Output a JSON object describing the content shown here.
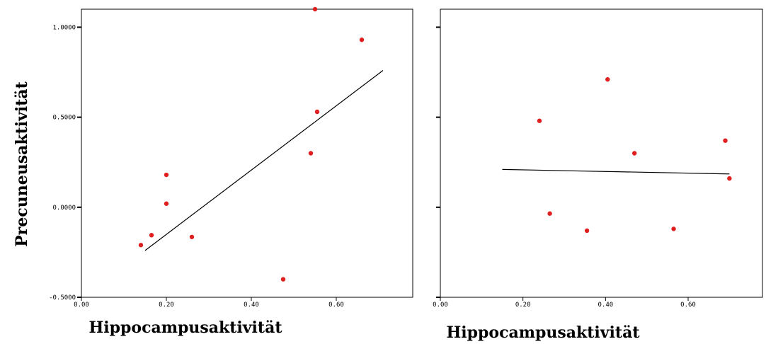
{
  "chart_data": [
    {
      "type": "scatter",
      "xlabel": "Hippocampusaktivität",
      "ylabel": "Precuneusaktivität",
      "xlim": [
        0.0,
        0.78
      ],
      "ylim": [
        -0.5,
        1.1
      ],
      "xticks": [
        "0.00",
        "0.20",
        "0.40",
        "0.60"
      ],
      "yticks": [
        "-0.5000",
        "0.0000",
        "0.5000",
        "1.0000"
      ],
      "series": [
        {
          "points": [
            {
              "x": 0.14,
              "y": -0.21
            },
            {
              "x": 0.165,
              "y": -0.155
            },
            {
              "x": 0.2,
              "y": 0.18
            },
            {
              "x": 0.2,
              "y": 0.02
            },
            {
              "x": 0.26,
              "y": -0.165
            },
            {
              "x": 0.475,
              "y": -0.4
            },
            {
              "x": 0.54,
              "y": 0.3
            },
            {
              "x": 0.55,
              "y": 1.1
            },
            {
              "x": 0.555,
              "y": 0.53
            },
            {
              "x": 0.66,
              "y": 0.93
            }
          ]
        }
      ],
      "fit_line": {
        "x": [
          0.15,
          0.71
        ],
        "y": [
          -0.24,
          0.76
        ]
      }
    },
    {
      "type": "scatter",
      "xlabel": "Hippocampusaktivität",
      "ylabel": "",
      "xlim": [
        0.0,
        0.78
      ],
      "ylim": [
        -0.5,
        1.1
      ],
      "xticks": [
        "0.00",
        "0.20",
        "0.40",
        "0.60"
      ],
      "yticks": [],
      "series": [
        {
          "points": [
            {
              "x": 0.24,
              "y": 0.48
            },
            {
              "x": 0.265,
              "y": -0.035
            },
            {
              "x": 0.355,
              "y": -0.13
            },
            {
              "x": 0.405,
              "y": 0.71
            },
            {
              "x": 0.47,
              "y": 0.3
            },
            {
              "x": 0.565,
              "y": -0.12
            },
            {
              "x": 0.69,
              "y": 0.37
            },
            {
              "x": 0.7,
              "y": 0.16
            }
          ]
        }
      ],
      "fit_line": {
        "x": [
          0.15,
          0.7
        ],
        "y": [
          0.21,
          0.185
        ]
      }
    }
  ]
}
